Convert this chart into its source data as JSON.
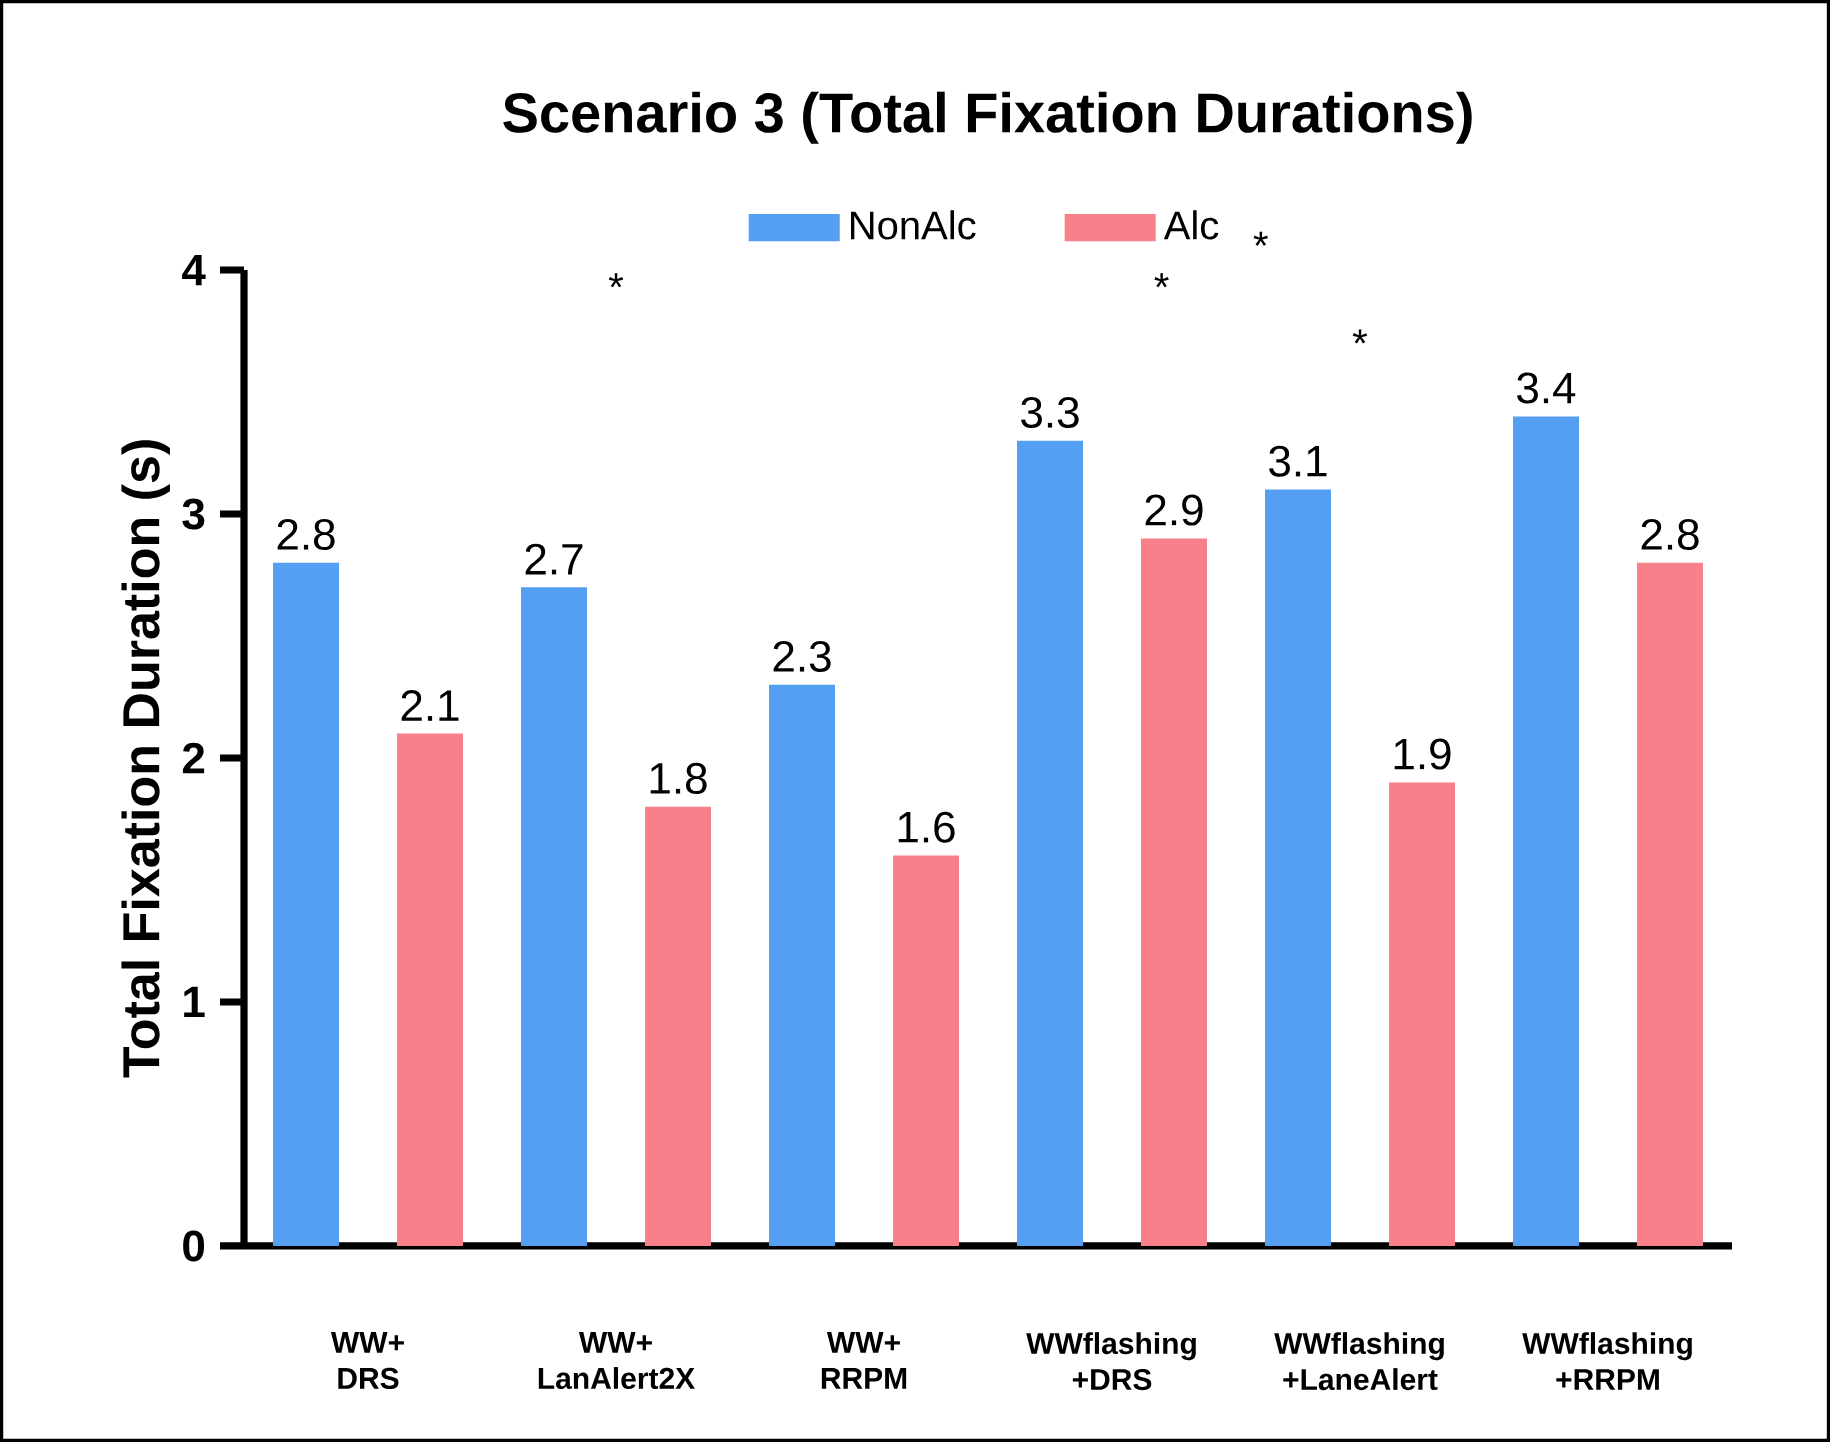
{
  "chart_data": {
    "type": "bar",
    "title": "Scenario 3 (Total Fixation Durations)",
    "ylabel": "Total Fixation Duration (s)",
    "categories": [
      "WW+ DRS",
      "WW+ LanAlert2X",
      "WW+ RRPM",
      "WWflashing +DRS",
      "WWflashing +LaneAlert",
      "WWflashing +RRPM"
    ],
    "series": [
      {
        "name": "NonAlc",
        "color": "#559ff3",
        "values": [
          2.8,
          2.7,
          2.3,
          3.3,
          3.1,
          3.4
        ]
      },
      {
        "name": "Alc",
        "color": "#f8808a",
        "values": [
          2.1,
          1.8,
          1.6,
          2.9,
          1.9,
          2.8
        ]
      }
    ],
    "ylim": [
      0,
      4
    ],
    "yticks": [
      0,
      1,
      2,
      3,
      4
    ],
    "data_labels": true,
    "legend": "top",
    "grid": false,
    "annotations": [
      "*",
      "*",
      "*",
      "*"
    ]
  }
}
